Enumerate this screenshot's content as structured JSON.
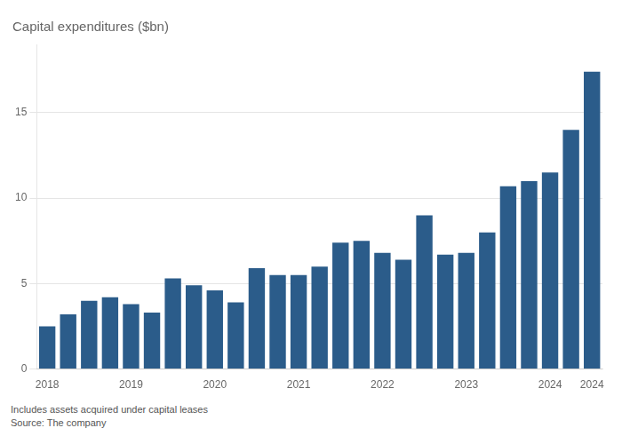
{
  "chart_data": {
    "type": "bar",
    "title": "Capital expenditures ($bn)",
    "categories": [
      "2018",
      null,
      null,
      null,
      "2019",
      null,
      null,
      null,
      "2020",
      null,
      null,
      null,
      "2021",
      null,
      null,
      null,
      "2022",
      null,
      null,
      null,
      "2023",
      null,
      null,
      null,
      "2024",
      null,
      "2024"
    ],
    "values": [
      2.5,
      3.2,
      4.0,
      4.2,
      3.8,
      3.3,
      5.3,
      4.9,
      4.6,
      3.9,
      5.9,
      5.5,
      5.5,
      6.0,
      7.4,
      7.5,
      6.8,
      6.4,
      9.0,
      6.7,
      6.8,
      8.0,
      10.7,
      11.0,
      11.5,
      14.0,
      17.4
    ],
    "color": "#2b5c8a",
    "ylim": [
      0,
      19
    ],
    "yticks": [
      0,
      5,
      10,
      15
    ],
    "grid": true,
    "annotations": [
      "Includes assets acquired under capital leases",
      "Source: The company"
    ]
  }
}
